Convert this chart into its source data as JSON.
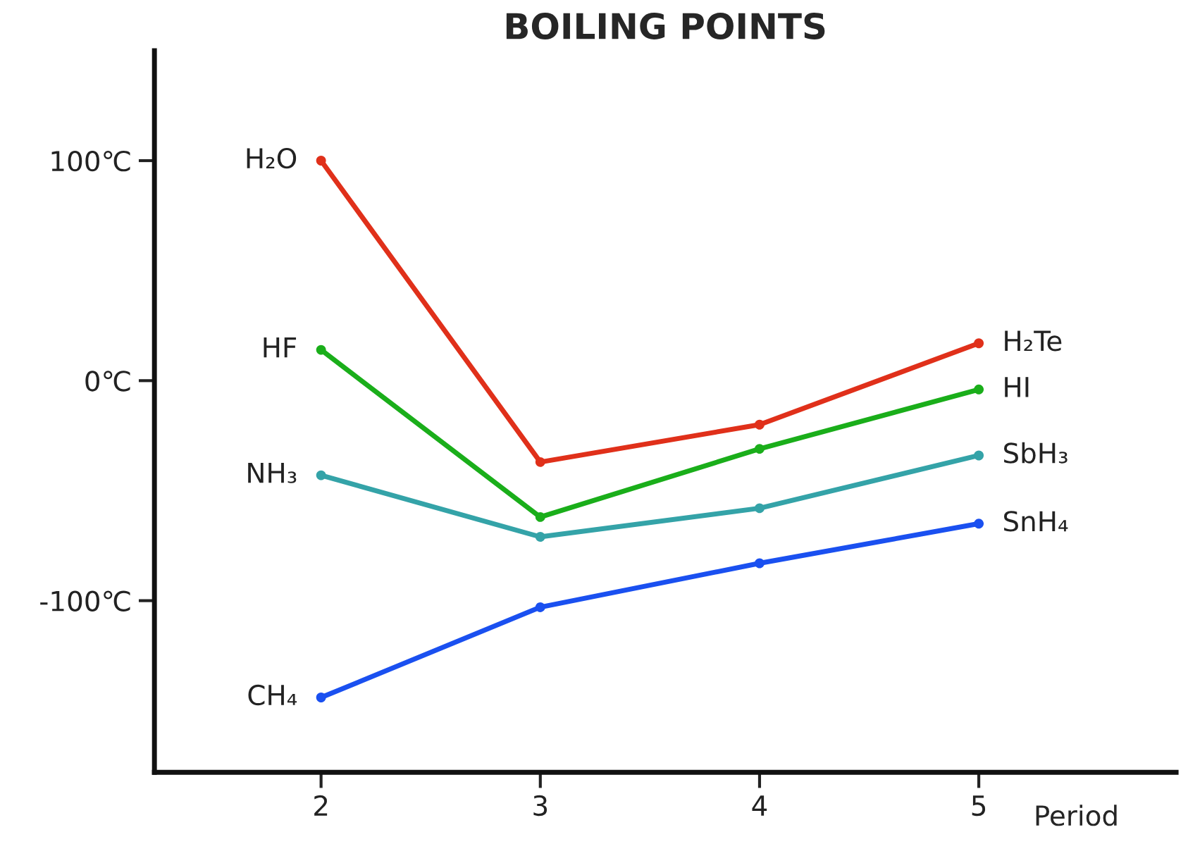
{
  "chart_data": {
    "type": "line",
    "title": "BOILING POINTS",
    "xlabel": "Period",
    "x": [
      2,
      3,
      4,
      5
    ],
    "series": [
      {
        "name": "H₂O",
        "color": "#e0301a",
        "values": [
          100,
          -37,
          -20,
          17
        ]
      },
      {
        "name": "HF",
        "color": "#1aae1a",
        "values": [
          14,
          -62,
          -31,
          -4
        ]
      },
      {
        "name": "NH₃",
        "color": "#34a3a8",
        "values": [
          -43,
          -71,
          -58,
          -34
        ]
      },
      {
        "name": "CH₄",
        "color": "#1a50f0",
        "values": [
          -144,
          -103,
          -83,
          -65
        ]
      }
    ],
    "annotations": [
      "H₂Te",
      "HI",
      "SbH₃",
      "SnH₄"
    ],
    "xlim": [
      1.24,
      5.9
    ],
    "ylim": [
      -178,
      150
    ],
    "xticks": [
      2,
      3,
      4,
      5
    ],
    "yticks": [
      {
        "value": 100,
        "label": "100℃"
      },
      {
        "value": 0,
        "label": "0℃"
      },
      {
        "value": -100,
        "label": "-100℃"
      }
    ],
    "grid": false,
    "legend": false,
    "marker": "circle",
    "line_style": "solid"
  }
}
